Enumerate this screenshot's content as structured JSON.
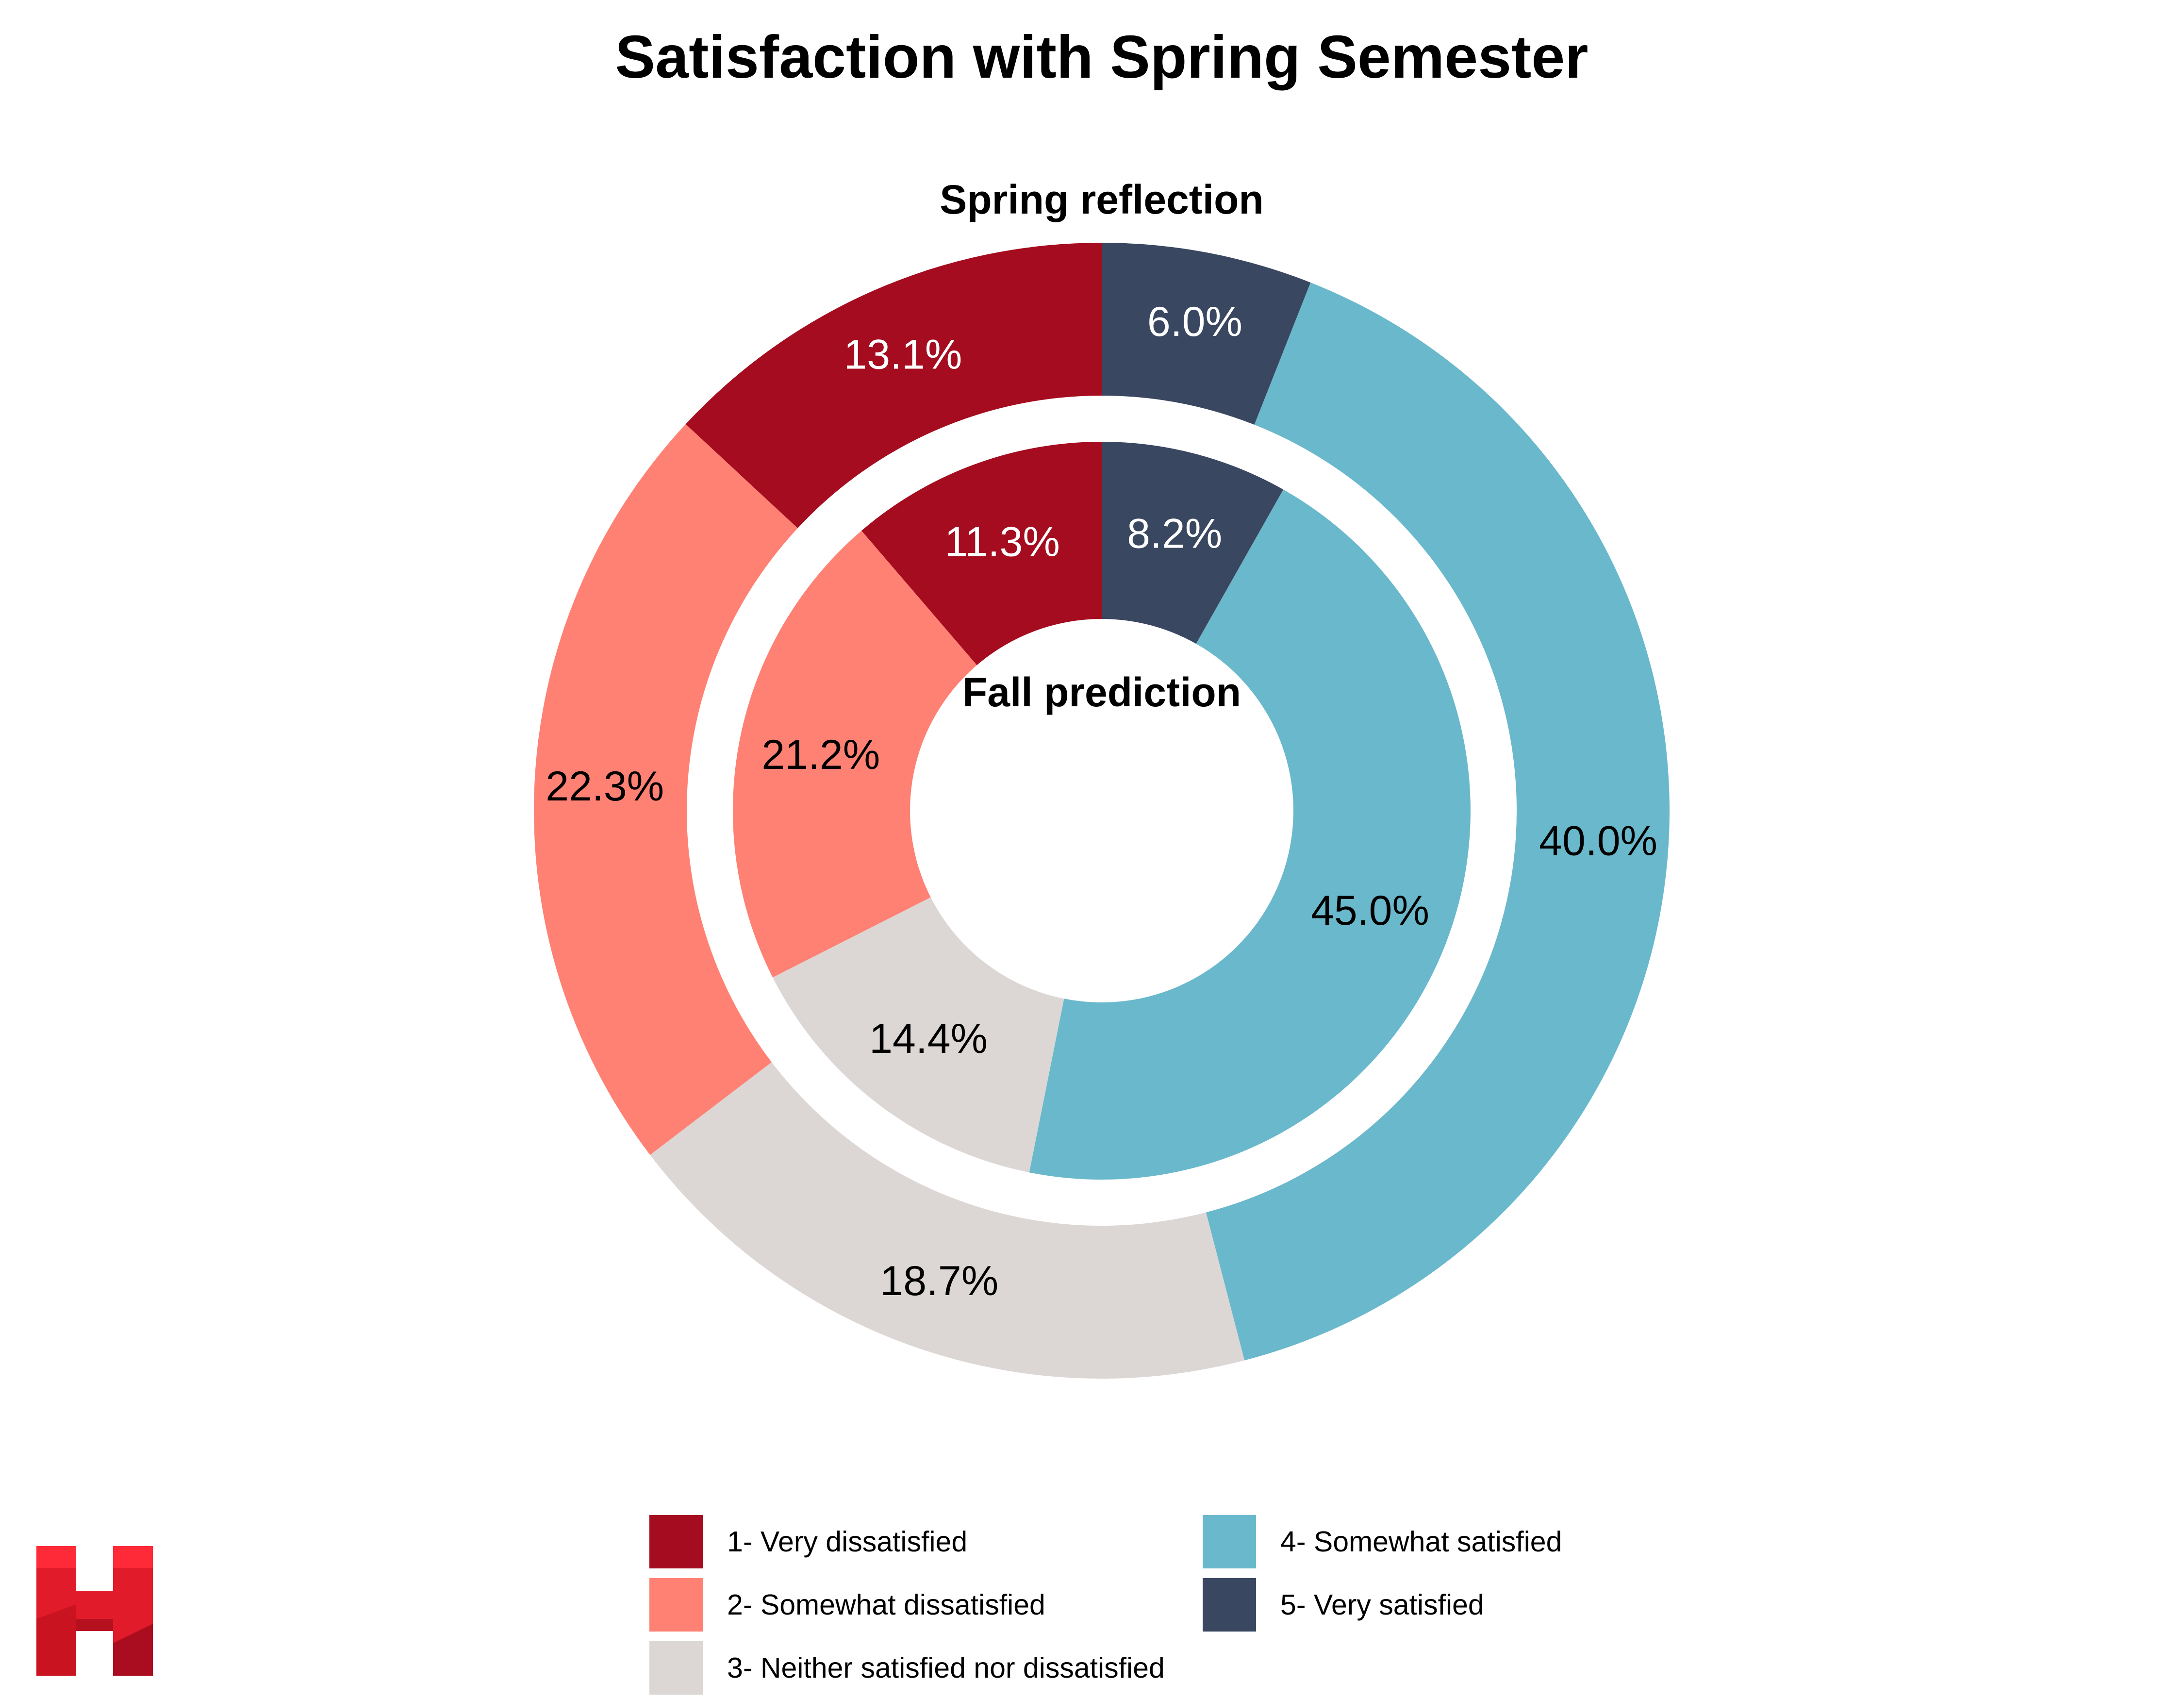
{
  "chart_data": {
    "type": "pie",
    "title": "Satisfaction with Spring Semester",
    "categories": [
      "1- Very dissatisfied",
      "2- Somewhat dissatisfied",
      "3- Neither satisfied nor dissatisfied",
      "4- Somewhat satisfied",
      "5- Very satisfied"
    ],
    "colors": [
      "#A50C1F",
      "#FF8174",
      "#DCD7D5",
      "#6AB8CB",
      "#3A4761"
    ],
    "label_colors": [
      "#ffffff",
      "#000000",
      "#000000",
      "#000000",
      "#ffffff"
    ],
    "series": [
      {
        "name": "Spring reflection",
        "ring": "outer",
        "values": [
          13.1,
          22.3,
          18.7,
          40.0,
          6.0
        ]
      },
      {
        "name": "Fall prediction",
        "ring": "inner",
        "values": [
          11.3,
          21.2,
          14.4,
          45.0,
          8.2
        ]
      }
    ],
    "legend_placement": "bottom",
    "start_angle": "12 o'clock",
    "direction": "counterclockwise"
  },
  "logo": {
    "icon": "h-logo-icon",
    "text": "H"
  }
}
